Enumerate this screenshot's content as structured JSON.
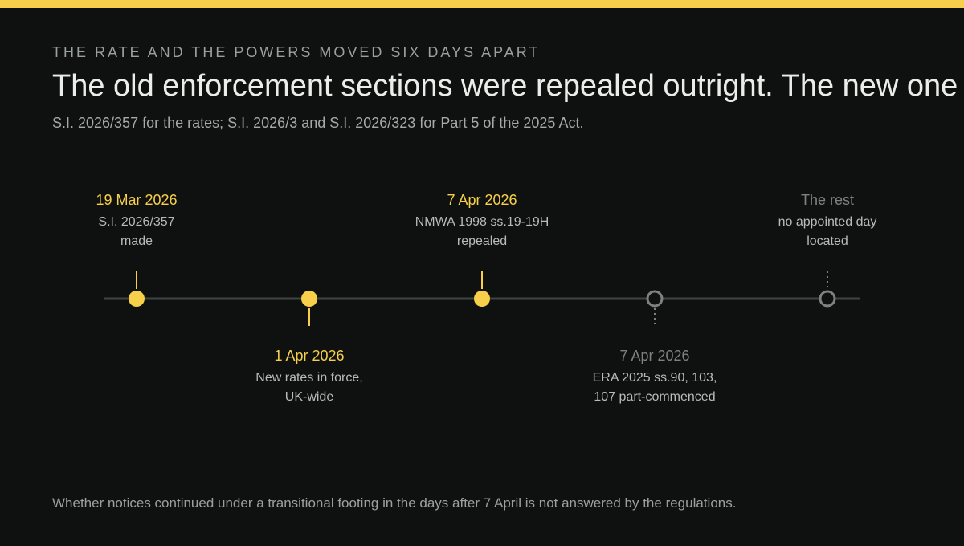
{
  "eyebrow": "THE RATE AND THE POWERS MOVED SIX DAYS APART",
  "headline": "The old enforcement sections were repealed outright. The new one",
  "subtitle": "S.I. 2026/357 for the rates; S.I. 2026/3 and S.I. 2026/323 for Part 5 of the 2025 Act.",
  "events": [
    {
      "date": "19 Mar 2026",
      "lines": [
        "S.I. 2026/357",
        "made"
      ],
      "status": "active",
      "side": "above"
    },
    {
      "date": "1 Apr 2026",
      "lines": [
        "New rates in force,",
        "UK-wide"
      ],
      "status": "active",
      "side": "below"
    },
    {
      "date": "7 Apr 2026",
      "lines": [
        "NMWA 1998 ss.19-19H",
        "repealed"
      ],
      "status": "active",
      "side": "above"
    },
    {
      "date": "7 Apr 2026",
      "lines": [
        "ERA 2025 ss.90, 103,",
        "107 part-commenced"
      ],
      "status": "pending",
      "side": "below"
    },
    {
      "date": "The rest",
      "lines": [
        "no appointed day",
        "located"
      ],
      "status": "pending",
      "side": "above"
    }
  ],
  "colors": {
    "accent": "#f7cf4a",
    "axis": "#3e4440",
    "pending": "#7c837f",
    "background": "#0f1110"
  },
  "footnote": "Whether notices continued under a transitional footing in the days after 7 April is not answered by the regulations."
}
